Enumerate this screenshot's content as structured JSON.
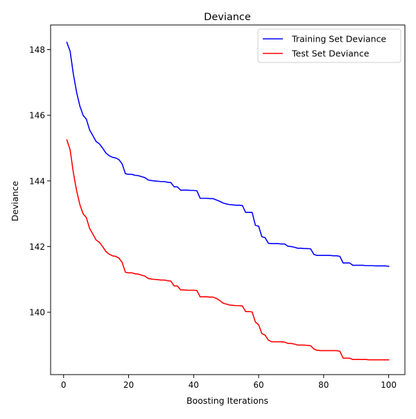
{
  "chart_data": {
    "type": "line",
    "title": "Deviance",
    "xlabel": "Boosting Iterations",
    "ylabel": "Deviance",
    "xlim": [
      -4.0,
      105.0
    ],
    "ylim": [
      138.1,
      148.75
    ],
    "xticks": [
      0,
      20,
      40,
      60,
      80,
      100
    ],
    "yticks": [
      140,
      142,
      144,
      146,
      148
    ],
    "grid": false,
    "legend": "top-right",
    "series": [
      {
        "name": "Training Set Deviance",
        "color": "#0000ff",
        "x": [
          1,
          2,
          3,
          4,
          5,
          6,
          7,
          8,
          9,
          10,
          11,
          12,
          13,
          14,
          15,
          16,
          17,
          18,
          19,
          20,
          21,
          22,
          23,
          24,
          25,
          26,
          27,
          28,
          29,
          30,
          31,
          32,
          33,
          34,
          35,
          36,
          37,
          38,
          39,
          40,
          41,
          42,
          43,
          44,
          45,
          46,
          47,
          48,
          49,
          50,
          51,
          52,
          53,
          54,
          55,
          56,
          57,
          58,
          59,
          60,
          61,
          62,
          63,
          64,
          65,
          66,
          67,
          68,
          69,
          70,
          71,
          72,
          73,
          74,
          75,
          76,
          77,
          78,
          79,
          80,
          81,
          82,
          83,
          84,
          85,
          86,
          87,
          88,
          89,
          90,
          91,
          92,
          93,
          94,
          95,
          96,
          97,
          98,
          99,
          100
        ],
        "y": [
          148.22,
          147.95,
          147.25,
          146.7,
          146.28,
          146.0,
          145.88,
          145.55,
          145.38,
          145.2,
          145.13,
          145.0,
          144.85,
          144.77,
          144.72,
          144.7,
          144.65,
          144.52,
          144.22,
          144.2,
          144.2,
          144.17,
          144.16,
          144.13,
          144.1,
          144.03,
          144.01,
          144.0,
          143.99,
          143.98,
          143.98,
          143.96,
          143.95,
          143.82,
          143.82,
          143.72,
          143.72,
          143.72,
          143.71,
          143.71,
          143.7,
          143.47,
          143.47,
          143.47,
          143.46,
          143.46,
          143.42,
          143.38,
          143.33,
          143.3,
          143.28,
          143.27,
          143.26,
          143.26,
          143.25,
          143.04,
          143.04,
          143.04,
          142.65,
          142.62,
          142.3,
          142.27,
          142.1,
          142.09,
          142.09,
          142.09,
          142.08,
          142.08,
          142.01,
          142.0,
          141.98,
          141.95,
          141.95,
          141.94,
          141.94,
          141.93,
          141.76,
          141.73,
          141.73,
          141.73,
          141.73,
          141.73,
          141.72,
          141.72,
          141.7,
          141.5,
          141.5,
          141.5,
          141.43,
          141.43,
          141.43,
          141.43,
          141.42,
          141.42,
          141.42,
          141.41,
          141.41,
          141.41,
          141.41,
          141.4
        ]
      },
      {
        "name": "Test Set Deviance",
        "color": "#ff0000",
        "x": [
          1,
          2,
          3,
          4,
          5,
          6,
          7,
          8,
          9,
          10,
          11,
          12,
          13,
          14,
          15,
          16,
          17,
          18,
          19,
          20,
          21,
          22,
          23,
          24,
          25,
          26,
          27,
          28,
          29,
          30,
          31,
          32,
          33,
          34,
          35,
          36,
          37,
          38,
          39,
          40,
          41,
          42,
          43,
          44,
          45,
          46,
          47,
          48,
          49,
          50,
          51,
          52,
          53,
          54,
          55,
          56,
          57,
          58,
          59,
          60,
          61,
          62,
          63,
          64,
          65,
          66,
          67,
          68,
          69,
          70,
          71,
          72,
          73,
          74,
          75,
          76,
          77,
          78,
          79,
          80,
          81,
          82,
          83,
          84,
          85,
          86,
          87,
          88,
          89,
          90,
          91,
          92,
          93,
          94,
          95,
          96,
          97,
          98,
          99,
          100
        ],
        "y": [
          145.25,
          144.95,
          144.25,
          143.7,
          143.28,
          143.0,
          142.88,
          142.55,
          142.38,
          142.2,
          142.13,
          142.0,
          141.85,
          141.77,
          141.72,
          141.7,
          141.65,
          141.52,
          141.22,
          141.2,
          141.2,
          141.17,
          141.16,
          141.13,
          141.1,
          141.03,
          141.01,
          141.0,
          140.99,
          140.98,
          140.98,
          140.96,
          140.95,
          140.8,
          140.8,
          140.68,
          140.68,
          140.67,
          140.67,
          140.67,
          140.66,
          140.47,
          140.47,
          140.47,
          140.46,
          140.46,
          140.42,
          140.36,
          140.28,
          140.25,
          140.22,
          140.21,
          140.2,
          140.2,
          140.19,
          140.02,
          140.02,
          140.01,
          139.7,
          139.62,
          139.35,
          139.3,
          139.15,
          139.1,
          139.1,
          139.1,
          139.1,
          139.09,
          139.05,
          139.05,
          139.03,
          139.0,
          139.0,
          139.0,
          138.99,
          138.98,
          138.88,
          138.84,
          138.83,
          138.83,
          138.83,
          138.83,
          138.83,
          138.83,
          138.81,
          138.6,
          138.6,
          138.6,
          138.56,
          138.56,
          138.56,
          138.56,
          138.56,
          138.55,
          138.55,
          138.55,
          138.55,
          138.55,
          138.55,
          138.55
        ]
      }
    ]
  }
}
